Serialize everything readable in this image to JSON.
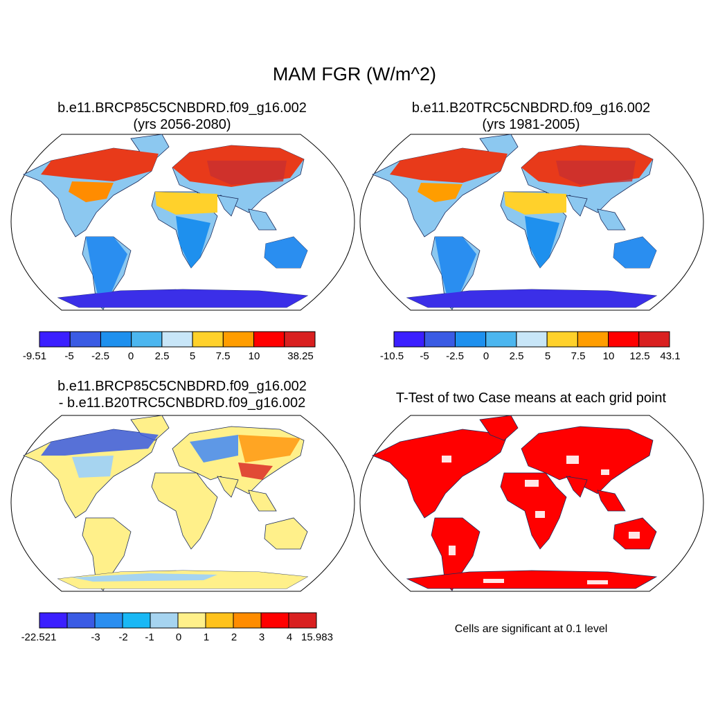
{
  "main_title": "MAM FGR (W/m^2)",
  "panels": [
    {
      "id": "future",
      "title_line1": "b.e11.BRCP85C5CNBDRD.f09_g16.002",
      "title_line2": "(yrs 2056-2080)",
      "colorbar": {
        "colors": [
          "#3b1fff",
          "#3a5be4",
          "#1e90ee",
          "#4cb6ef",
          "#c8e6f8",
          "#ffd12b",
          "#ff9d00",
          "#ff0000",
          "#d92020"
        ],
        "labels": [
          "-9.51",
          "-5",
          "-2.5",
          "0",
          "2.5",
          "5",
          "7.5",
          "10",
          "38.25"
        ]
      }
    },
    {
      "id": "present",
      "title_line1": "b.e11.B20TRC5CNBDRD.f09_g16.002",
      "title_line2": "(yrs 1981-2005)",
      "colorbar": {
        "colors": [
          "#3b1fff",
          "#3a5be4",
          "#1e90ee",
          "#4cb6ef",
          "#c8e6f8",
          "#ffd12b",
          "#ff9d00",
          "#ff0000",
          "#d92020"
        ],
        "labels": [
          "-10.5",
          "-5",
          "-2.5",
          "0",
          "2.5",
          "5",
          "7.5",
          "10",
          "12.5",
          "43.1"
        ]
      }
    },
    {
      "id": "difference",
      "title_line1": "b.e11.BRCP85C5CNBDRD.f09_g16.002",
      "title_line2": "- b.e11.B20TRC5CNBDRD.f09_g16.002",
      "colorbar": {
        "colors": [
          "#3b1fff",
          "#3a5be4",
          "#2a8ef0",
          "#19b8f5",
          "#a6d4f0",
          "#fff08a",
          "#ffc21c",
          "#ff8c00",
          "#ff0000",
          "#d92020"
        ],
        "labels": [
          "-22.521",
          "-3",
          "-2",
          "-1",
          "0",
          "1",
          "2",
          "3",
          "4",
          "15.983"
        ]
      }
    },
    {
      "id": "ttest",
      "title_line1": "T-Test of two Case means at each grid point",
      "title_line2": "",
      "note": "Cells are significant at 0.1 level"
    }
  ],
  "map_colors": {
    "ocean": "#ffffff",
    "outline": "#000000",
    "significant": "#ff0000"
  }
}
